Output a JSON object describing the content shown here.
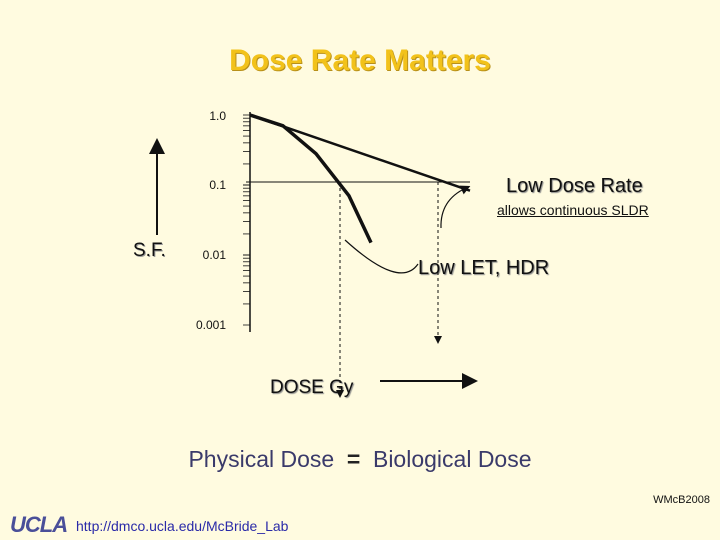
{
  "title": "Dose Rate Matters",
  "chart_data": {
    "type": "line",
    "ylabel": "S.F.",
    "xlabel": "DOSE Gy",
    "yscale": "log",
    "y_ticks": [
      "1.0",
      "0.1",
      "0.01",
      "0.001"
    ],
    "ylim": [
      0.001,
      1.0
    ],
    "series": [
      {
        "name": "Low Dose Rate",
        "points": [
          [
            0,
            1.0
          ],
          [
            1,
            0.083
          ]
        ]
      },
      {
        "name": "Low LET, HDR",
        "points": [
          [
            0,
            1.0
          ],
          [
            0.15,
            0.7
          ],
          [
            0.3,
            0.28
          ],
          [
            0.45,
            0.07
          ],
          [
            0.55,
            0.015
          ]
        ]
      }
    ],
    "annotations": {
      "low_dose_rate": "Low Dose Rate",
      "sldr_note": "allows continuous SLDR",
      "hdr": "Low LET, HDR"
    }
  },
  "footer_statement": {
    "left": "Physical Dose",
    "symbol": "=",
    "right": "Biological Dose"
  },
  "credit": "WMcB2008",
  "footer": {
    "logo": "UCLA",
    "url": "http://dmco.ucla.edu/McBride_Lab"
  }
}
